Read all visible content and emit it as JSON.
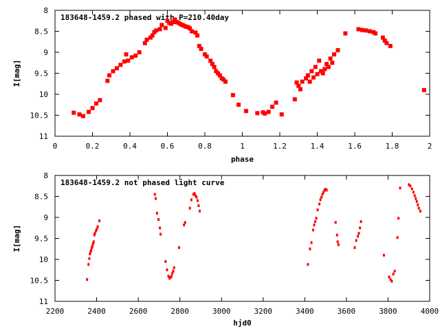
{
  "chart_data": [
    {
      "type": "scatter",
      "title": "183648-1459.2 phased with P=210.40day",
      "xlabel": "phase",
      "ylabel": "I[mag]",
      "xlim": [
        0,
        2
      ],
      "ylim": [
        8,
        11
      ],
      "y_inverted": true,
      "x_ticks": [
        "0",
        "0.2",
        "0.4",
        "0.6",
        "0.8",
        "1",
        "1.2",
        "1.4",
        "1.6",
        "1.8",
        "2"
      ],
      "y_ticks": [
        "8",
        "8.5",
        "9",
        "9.5",
        "10",
        "10.5",
        "11"
      ],
      "marker_color": "#ff0000",
      "marker": "filled-square",
      "series": [
        {
          "x": [
            0.1,
            0.13,
            0.15,
            0.18,
            0.2,
            0.22,
            0.24,
            0.28,
            0.29,
            0.31,
            0.33,
            0.35,
            0.37,
            0.38,
            0.39,
            0.41,
            0.43,
            0.45,
            0.48,
            0.49,
            0.51,
            0.52,
            0.53,
            0.54,
            0.56,
            0.57,
            0.59,
            0.6,
            0.61,
            0.62,
            0.63,
            0.64,
            0.65,
            0.66,
            0.67,
            0.68,
            0.69,
            0.7,
            0.71,
            0.72,
            0.73,
            0.75,
            0.76,
            0.77,
            0.78,
            0.8,
            0.81,
            0.83,
            0.84,
            0.85,
            0.86,
            0.87,
            0.88,
            0.89,
            0.9,
            0.91,
            0.95,
            0.98,
            1.02,
            1.08,
            1.11,
            1.12,
            1.14,
            1.16,
            1.18,
            1.21,
            1.28,
            1.29,
            1.3,
            1.31,
            1.32,
            1.34,
            1.35,
            1.36,
            1.37,
            1.38,
            1.39,
            1.4,
            1.41,
            1.42,
            1.43,
            1.44,
            1.45,
            1.46,
            1.47,
            1.48,
            1.49,
            1.51,
            1.55,
            1.62,
            1.64,
            1.66,
            1.68,
            1.7,
            1.71,
            1.75,
            1.76,
            1.77,
            1.79,
            1.97
          ],
          "y": [
            10.44,
            10.48,
            10.52,
            10.42,
            10.33,
            10.22,
            10.14,
            9.68,
            9.55,
            9.45,
            9.38,
            9.3,
            9.22,
            9.05,
            9.2,
            9.12,
            9.08,
            9.0,
            8.78,
            8.7,
            8.65,
            8.6,
            8.52,
            8.48,
            8.45,
            8.35,
            8.42,
            8.25,
            8.3,
            8.32,
            8.28,
            8.22,
            8.28,
            8.3,
            8.33,
            8.35,
            8.37,
            8.39,
            8.4,
            8.43,
            8.5,
            8.53,
            8.6,
            8.85,
            8.92,
            9.05,
            9.1,
            9.2,
            9.28,
            9.35,
            9.45,
            9.5,
            9.55,
            9.62,
            9.65,
            9.7,
            10.02,
            10.25,
            10.4,
            10.45,
            10.43,
            10.46,
            10.42,
            10.3,
            10.2,
            10.48,
            10.12,
            9.72,
            9.8,
            9.88,
            9.7,
            9.62,
            9.55,
            9.7,
            9.45,
            9.6,
            9.35,
            9.52,
            9.2,
            9.45,
            9.5,
            9.4,
            9.28,
            9.35,
            9.15,
            9.25,
            9.05,
            8.95,
            8.55,
            8.45,
            8.47,
            8.48,
            8.5,
            8.52,
            8.55,
            8.65,
            8.72,
            8.78,
            8.85,
            9.9
          ]
        }
      ]
    },
    {
      "type": "scatter",
      "title": "183648-1459.2 not phased light curve",
      "xlabel": "hjd0",
      "ylabel": "I[mag]",
      "xlim": [
        2200,
        4000
      ],
      "ylim": [
        8,
        11
      ],
      "y_inverted": true,
      "x_ticks": [
        "2200",
        "2400",
        "2600",
        "2800",
        "3000",
        "3200",
        "3400",
        "3600",
        "3800",
        "4000"
      ],
      "y_ticks": [
        "8",
        "8.5",
        "9",
        "9.5",
        "10",
        "10.5",
        "11"
      ],
      "marker_color": "#ff0000",
      "marker": "small-dot",
      "series": [
        {
          "x": [
            2354,
            2361,
            2365,
            2368,
            2371,
            2374,
            2377,
            2380,
            2383,
            2386,
            2389,
            2392,
            2397,
            2401,
            2405,
            2413,
            2680,
            2684,
            2690,
            2697,
            2704,
            2707,
            2731,
            2738,
            2745,
            2750,
            2755,
            2760,
            2764,
            2768,
            2772,
            2796,
            2820,
            2825,
            2848,
            2855,
            2865,
            2870,
            2875,
            2880,
            2885,
            2890,
            2895,
            3415,
            3425,
            3432,
            3440,
            3445,
            3450,
            3455,
            3462,
            3470,
            3475,
            3480,
            3485,
            3490,
            3495,
            3500,
            3505,
            3548,
            3555,
            3558,
            3562,
            3640,
            3647,
            3655,
            3660,
            3665,
            3670,
            3780,
            3805,
            3812,
            3818,
            3825,
            3832,
            3845,
            3850,
            3858,
            3900,
            3907,
            3915,
            3922,
            3928,
            3933,
            3938,
            3943,
            3948,
            3955
          ],
          "y": [
            10.48,
            10.12,
            9.98,
            9.87,
            9.82,
            9.78,
            9.72,
            9.68,
            9.62,
            9.58,
            9.42,
            9.38,
            9.32,
            9.28,
            9.22,
            9.08,
            8.45,
            8.55,
            8.9,
            9.05,
            9.25,
            9.4,
            10.05,
            10.25,
            10.4,
            10.45,
            10.43,
            10.4,
            10.33,
            10.28,
            10.2,
            9.72,
            9.18,
            9.12,
            8.78,
            8.58,
            8.45,
            8.43,
            8.48,
            8.52,
            8.6,
            8.72,
            8.85,
            10.12,
            9.75,
            9.6,
            9.3,
            9.18,
            9.1,
            9.02,
            8.82,
            8.68,
            8.58,
            8.52,
            8.45,
            8.4,
            8.35,
            8.33,
            8.35,
            9.12,
            9.42,
            9.58,
            9.65,
            9.72,
            9.55,
            9.45,
            9.38,
            9.25,
            9.1,
            9.9,
            10.42,
            10.48,
            10.52,
            10.35,
            10.28,
            9.48,
            9.02,
            8.3,
            8.22,
            8.25,
            8.32,
            8.4,
            8.48,
            8.55,
            8.62,
            8.7,
            8.78,
            8.85
          ]
        }
      ]
    }
  ]
}
